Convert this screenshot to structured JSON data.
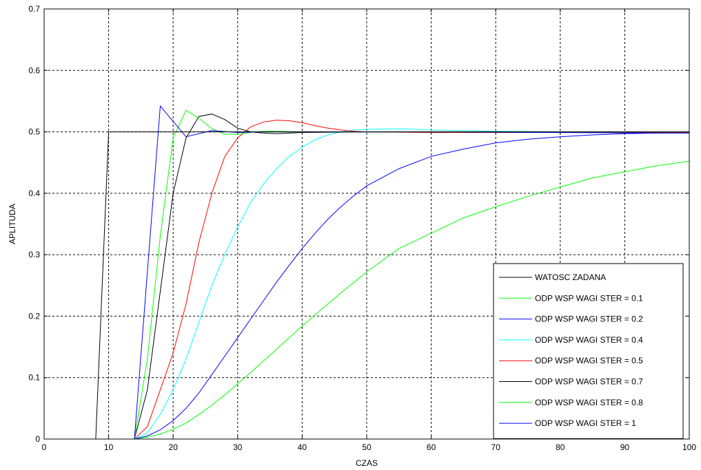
{
  "chart_data": {
    "type": "line",
    "title": "",
    "xlabel": "CZAS",
    "ylabel": "APLITUDA",
    "xlim": [
      0,
      100
    ],
    "ylim": [
      0,
      0.7
    ],
    "xticks": [
      0,
      10,
      20,
      30,
      40,
      50,
      60,
      70,
      80,
      90,
      100
    ],
    "yticks": [
      0,
      0.1,
      0.2,
      0.3,
      0.4,
      0.5,
      0.6,
      0.7
    ],
    "xtick_labels": [
      "0",
      "10",
      "20",
      "30",
      "40",
      "50",
      "60",
      "70",
      "80",
      "90",
      "100"
    ],
    "ytick_labels": [
      "0",
      "0.1",
      "0.2",
      "0.3",
      "0.4",
      "0.5",
      "0.6",
      "0.7"
    ],
    "grid": true,
    "legend_position": "bottom-right",
    "series": [
      {
        "name": "WATOSC ZADANA",
        "color": "#000000",
        "points": [
          [
            0,
            0
          ],
          [
            8,
            0
          ],
          [
            10,
            0.5
          ],
          [
            100,
            0.5
          ]
        ]
      },
      {
        "name": "ODP WSP WAGI STER = 0.1",
        "color": "#00ff00",
        "points": [
          [
            14,
            0
          ],
          [
            16,
            0.003
          ],
          [
            18,
            0.008
          ],
          [
            20,
            0.016
          ],
          [
            22,
            0.026
          ],
          [
            24,
            0.04
          ],
          [
            26,
            0.055
          ],
          [
            28,
            0.072
          ],
          [
            30,
            0.09
          ],
          [
            32,
            0.108
          ],
          [
            34,
            0.127
          ],
          [
            36,
            0.146
          ],
          [
            38,
            0.165
          ],
          [
            40,
            0.184
          ],
          [
            42,
            0.202
          ],
          [
            44,
            0.22
          ],
          [
            46,
            0.238
          ],
          [
            48,
            0.255
          ],
          [
            50,
            0.272
          ],
          [
            55,
            0.31
          ],
          [
            60,
            0.335
          ],
          [
            65,
            0.36
          ],
          [
            70,
            0.378
          ],
          [
            75,
            0.395
          ],
          [
            80,
            0.41
          ],
          [
            85,
            0.425
          ],
          [
            90,
            0.435
          ],
          [
            95,
            0.445
          ],
          [
            100,
            0.452
          ]
        ]
      },
      {
        "name": "ODP WSP WAGI STER = 0.2",
        "color": "#0000ff",
        "points": [
          [
            14,
            0
          ],
          [
            16,
            0.005
          ],
          [
            18,
            0.015
          ],
          [
            20,
            0.03
          ],
          [
            22,
            0.05
          ],
          [
            24,
            0.075
          ],
          [
            26,
            0.105
          ],
          [
            28,
            0.135
          ],
          [
            30,
            0.165
          ],
          [
            32,
            0.195
          ],
          [
            34,
            0.225
          ],
          [
            36,
            0.255
          ],
          [
            38,
            0.283
          ],
          [
            40,
            0.31
          ],
          [
            42,
            0.335
          ],
          [
            44,
            0.358
          ],
          [
            46,
            0.378
          ],
          [
            48,
            0.396
          ],
          [
            50,
            0.412
          ],
          [
            55,
            0.44
          ],
          [
            60,
            0.46
          ],
          [
            65,
            0.472
          ],
          [
            70,
            0.482
          ],
          [
            75,
            0.488
          ],
          [
            80,
            0.492
          ],
          [
            85,
            0.495
          ],
          [
            90,
            0.497
          ],
          [
            95,
            0.498
          ],
          [
            100,
            0.499
          ]
        ]
      },
      {
        "name": "ODP WSP WAGI STER = 0.4",
        "color": "#00ffff",
        "points": [
          [
            14,
            0
          ],
          [
            16,
            0.01
          ],
          [
            18,
            0.04
          ],
          [
            20,
            0.08
          ],
          [
            22,
            0.13
          ],
          [
            24,
            0.19
          ],
          [
            26,
            0.25
          ],
          [
            28,
            0.3
          ],
          [
            30,
            0.345
          ],
          [
            32,
            0.385
          ],
          [
            34,
            0.415
          ],
          [
            36,
            0.44
          ],
          [
            38,
            0.46
          ],
          [
            40,
            0.475
          ],
          [
            42,
            0.487
          ],
          [
            44,
            0.495
          ],
          [
            46,
            0.5
          ],
          [
            48,
            0.503
          ],
          [
            50,
            0.504
          ],
          [
            55,
            0.505
          ],
          [
            60,
            0.503
          ],
          [
            70,
            0.501
          ],
          [
            80,
            0.5
          ],
          [
            100,
            0.5
          ]
        ]
      },
      {
        "name": "ODP WSP WAGI STER = 0.5",
        "color": "#ff0000",
        "points": [
          [
            14,
            0
          ],
          [
            16,
            0.02
          ],
          [
            18,
            0.08
          ],
          [
            20,
            0.14
          ],
          [
            22,
            0.22
          ],
          [
            24,
            0.32
          ],
          [
            26,
            0.4
          ],
          [
            28,
            0.46
          ],
          [
            30,
            0.49
          ],
          [
            32,
            0.508
          ],
          [
            34,
            0.516
          ],
          [
            36,
            0.519
          ],
          [
            38,
            0.518
          ],
          [
            40,
            0.515
          ],
          [
            42,
            0.51
          ],
          [
            44,
            0.506
          ],
          [
            46,
            0.503
          ],
          [
            48,
            0.501
          ],
          [
            50,
            0.5
          ],
          [
            60,
            0.499
          ],
          [
            100,
            0.499
          ]
        ]
      },
      {
        "name": "ODP WSP WAGI STER = 0.7",
        "color": "#000000",
        "points": [
          [
            14,
            0
          ],
          [
            16,
            0.08
          ],
          [
            18,
            0.24
          ],
          [
            20,
            0.4
          ],
          [
            22,
            0.49
          ],
          [
            24,
            0.525
          ],
          [
            26,
            0.529
          ],
          [
            28,
            0.52
          ],
          [
            30,
            0.506
          ],
          [
            32,
            0.5
          ],
          [
            34,
            0.498
          ],
          [
            36,
            0.497
          ],
          [
            40,
            0.499
          ],
          [
            50,
            0.5
          ],
          [
            100,
            0.5
          ]
        ]
      },
      {
        "name": "ODP WSP WAGI STER = 0.8",
        "color": "#00ff00",
        "points": [
          [
            14,
            0
          ],
          [
            16,
            0.13
          ],
          [
            18,
            0.33
          ],
          [
            20,
            0.49
          ],
          [
            22,
            0.535
          ],
          [
            24,
            0.522
          ],
          [
            26,
            0.505
          ],
          [
            28,
            0.496
          ],
          [
            30,
            0.496
          ],
          [
            32,
            0.499
          ],
          [
            34,
            0.501
          ],
          [
            36,
            0.501
          ],
          [
            40,
            0.5
          ],
          [
            100,
            0.5
          ]
        ]
      },
      {
        "name": "ODP WSP WAGI STER = 1",
        "color": "#0000ff",
        "points": [
          [
            14,
            0
          ],
          [
            18,
            0.542
          ],
          [
            22,
            0.492
          ],
          [
            26,
            0.502
          ],
          [
            30,
            0.499
          ],
          [
            34,
            0.5
          ],
          [
            40,
            0.5
          ],
          [
            60,
            0.5
          ],
          [
            95,
            0.498
          ],
          [
            100,
            0.498
          ]
        ]
      }
    ]
  }
}
